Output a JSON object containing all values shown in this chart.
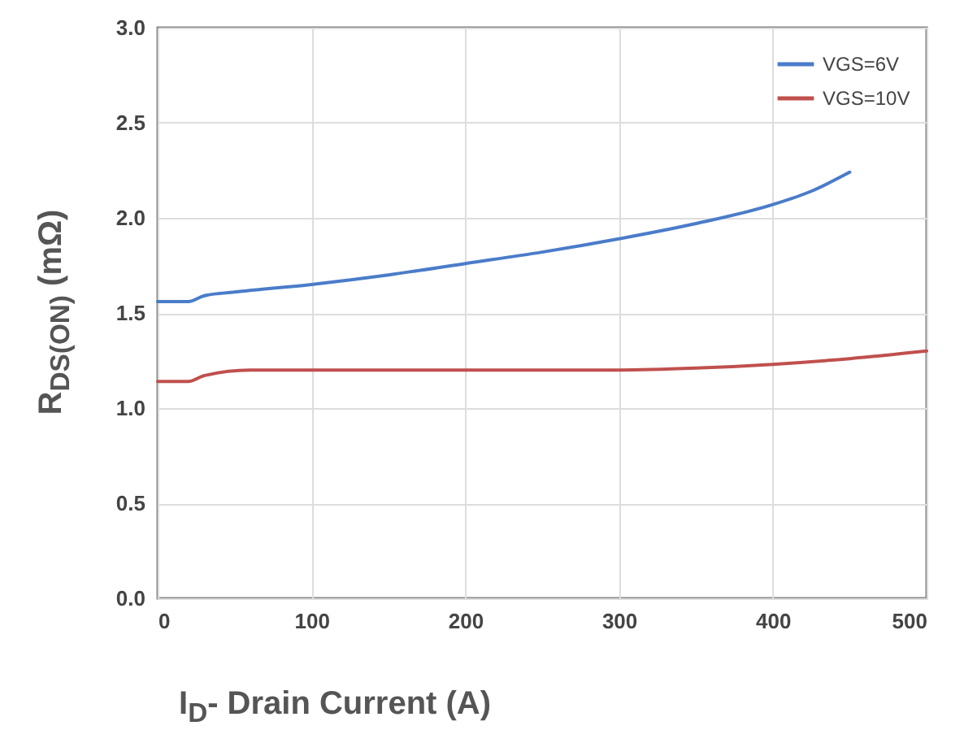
{
  "chart_data": {
    "type": "line",
    "xlabel": "I$_{D}$- Drain Current (A)",
    "ylabel": "R$_{DS(ON)}$ (mΩ)",
    "xlim": [
      0,
      500
    ],
    "xticks": [
      0,
      100,
      200,
      300,
      400,
      500
    ],
    "ylim": [
      0,
      3
    ],
    "yticks": [
      {
        "value": 0,
        "label": "0.0"
      },
      {
        "value": 0.5,
        "label": "0.5"
      },
      {
        "value": 1,
        "label": "1.0"
      },
      {
        "value": 1.5,
        "label": "1.5"
      },
      {
        "value": 2,
        "label": "2.0"
      },
      {
        "value": 2.5,
        "label": "2.5"
      },
      {
        "value": 3,
        "label": "3.0"
      }
    ],
    "grid": true,
    "legend": "top right",
    "series": [
      {
        "name": "VGS=6V",
        "color": "#4a7cc9",
        "x": [
          0,
          20,
          30,
          50,
          100,
          150,
          200,
          250,
          300,
          350,
          400,
          425,
          450
        ],
        "values": [
          1.56,
          1.56,
          1.59,
          1.61,
          1.65,
          1.7,
          1.76,
          1.82,
          1.89,
          1.97,
          2.07,
          2.14,
          2.24
        ]
      },
      {
        "name": "VGS=10V",
        "color": "#c0504d",
        "x": [
          0,
          20,
          30,
          60,
          100,
          200,
          300,
          350,
          400,
          450,
          500
        ],
        "values": [
          1.14,
          1.14,
          1.17,
          1.2,
          1.2,
          1.2,
          1.2,
          1.21,
          1.23,
          1.26,
          1.3
        ]
      }
    ]
  }
}
